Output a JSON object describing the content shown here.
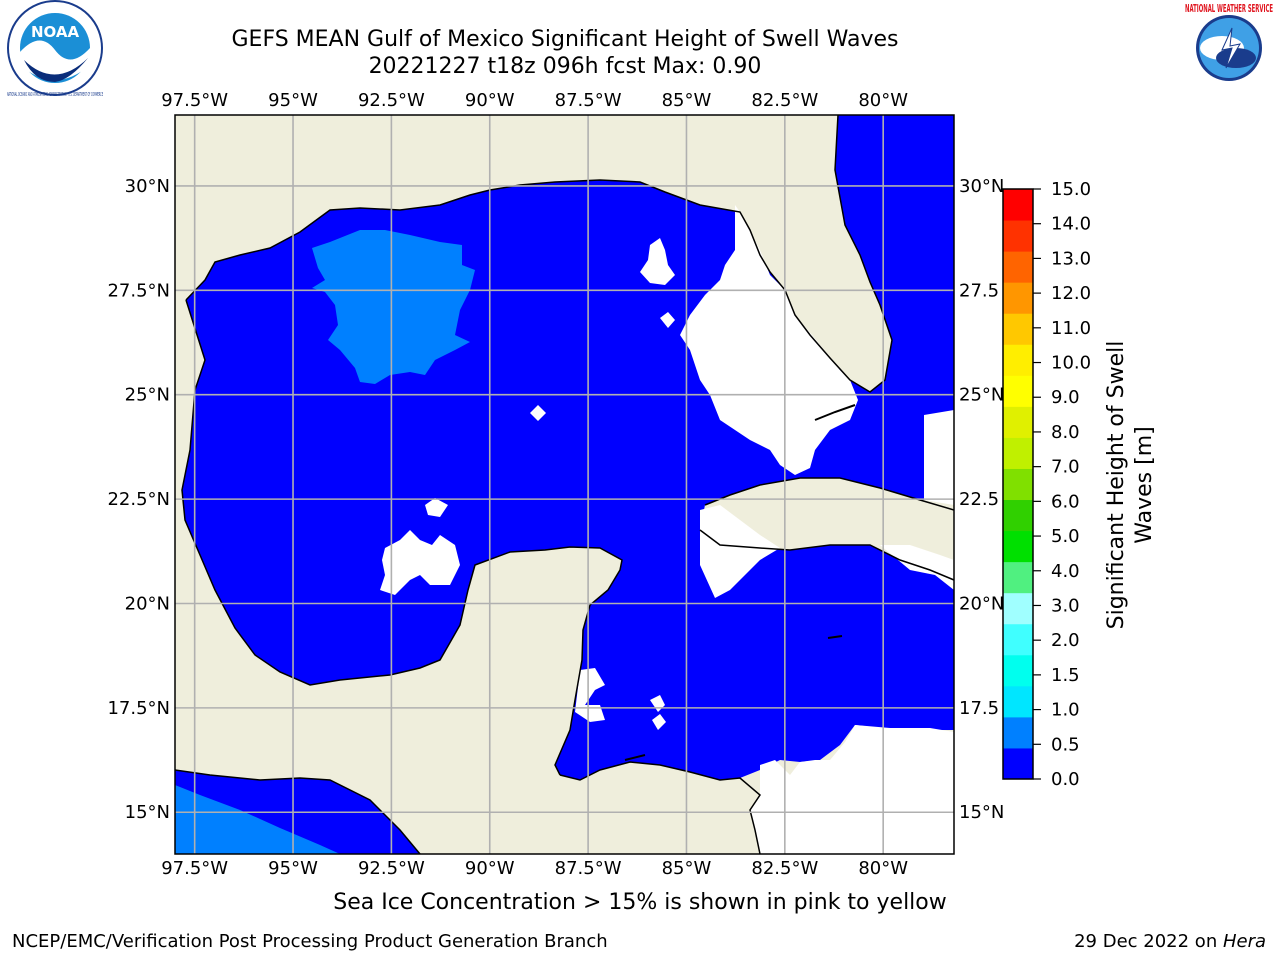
{
  "header": {
    "title_line1": "GEFS MEAN Gulf of Mexico Significant Height of Swell Waves",
    "title_line2": "20221227 t18z 096h fcst   Max: 0.90"
  },
  "logos": {
    "left": "NOAA",
    "left_ring": "NATIONAL OCEANIC AND ATMOSPHERIC ADMINISTRATION · U.S. DEPARTMENT OF COMMERCE",
    "right_ring": "NATIONAL WEATHER SERVICE"
  },
  "map": {
    "lon_labels": [
      "97.5°W",
      "95°W",
      "92.5°W",
      "90°W",
      "87.5°W",
      "85°W",
      "82.5°W",
      "80°W"
    ],
    "lon_values": [
      -97.5,
      -95,
      -92.5,
      -90,
      -87.5,
      -85,
      -82.5,
      -80
    ],
    "lat_labels": [
      "30°N",
      "27.5°N",
      "25°N",
      "22.5°N",
      "20°N",
      "17.5°N",
      "15°N"
    ],
    "lat_right_labels": [
      "30°N",
      "27.5",
      "25°N",
      "22.5",
      "20°N",
      "17.5",
      "15°N"
    ],
    "lat_values": [
      30,
      27.5,
      25,
      22.5,
      20,
      17.5,
      15
    ],
    "lon_range": [
      -98,
      -78.2
    ],
    "lat_range": [
      14,
      31.7
    ],
    "colors": {
      "land": "#efeedc",
      "water_low": "#0000ff",
      "water_mid": "#0080ff",
      "no_data": "#ffffff",
      "grid": "#b0b0b0"
    }
  },
  "colorbar": {
    "ticks": [
      "15.0",
      "14.0",
      "13.0",
      "12.0",
      "11.0",
      "10.0",
      "9.0",
      "8.0",
      "7.0",
      "6.0",
      "5.0",
      "4.0",
      "3.0",
      "2.0",
      "1.5",
      "1.0",
      "0.5",
      "0.0"
    ],
    "colors": [
      "#0000ff",
      "#0080ff",
      "#00e6ff",
      "#00ffee",
      "#40ffff",
      "#a0ffff",
      "#50f080",
      "#00e000",
      "#30d000",
      "#80e000",
      "#c0f000",
      "#e0f000",
      "#ffff00",
      "#ffee00",
      "#ffc800",
      "#ff9600",
      "#ff6400",
      "#ff3200",
      "#ff0000"
    ],
    "label": "Significant Height of Swell Waves [m]"
  },
  "footer": {
    "note": "Sea Ice Concentration > 15% is shown in pink to yellow",
    "org": "NCEP/EMC/Verification Post Processing Product Generation Branch",
    "date_prefix": "29 Dec 2022 on ",
    "machine": "Hera"
  }
}
